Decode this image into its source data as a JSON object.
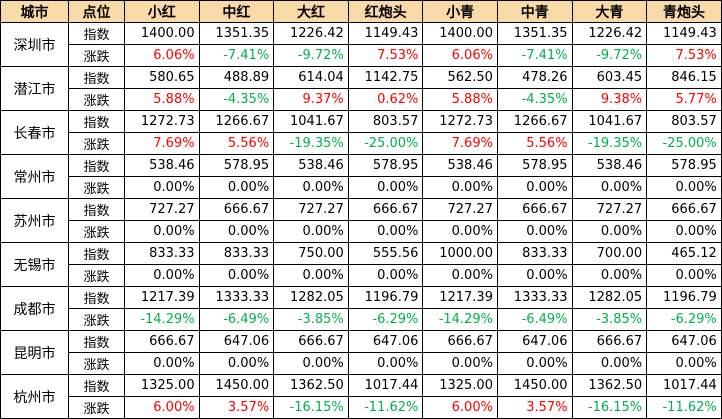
{
  "headers": [
    "城市",
    "点位",
    "小红",
    "中红",
    "大红",
    "红炮头",
    "小青",
    "中青",
    "大青",
    "青炮头"
  ],
  "row_labels": {
    "index": "指数",
    "change": "涨跌"
  },
  "colors": {
    "header_bg": "#f8d9a8",
    "up": "#ff0000",
    "down": "#00b050",
    "flat": "#000000"
  },
  "cities": [
    {
      "name": "深圳市",
      "index": [
        "1400.00",
        "1351.35",
        "1226.42",
        "1149.43",
        "1400.00",
        "1351.35",
        "1226.42",
        "1149.43"
      ],
      "change": [
        "6.06%",
        "-7.41%",
        "-9.72%",
        "7.53%",
        "6.06%",
        "-7.41%",
        "-9.72%",
        "7.53%"
      ]
    },
    {
      "name": "潜江市",
      "index": [
        "580.65",
        "488.89",
        "614.04",
        "1142.75",
        "562.50",
        "478.26",
        "603.45",
        "846.15"
      ],
      "change": [
        "5.88%",
        "-4.35%",
        "9.37%",
        "0.62%",
        "5.88%",
        "-4.35%",
        "9.38%",
        "5.77%"
      ]
    },
    {
      "name": "长春市",
      "index": [
        "1272.73",
        "1266.67",
        "1041.67",
        "803.57",
        "1272.73",
        "1266.67",
        "1041.67",
        "803.57"
      ],
      "change": [
        "7.69%",
        "5.56%",
        "-19.35%",
        "-25.00%",
        "7.69%",
        "5.56%",
        "-19.35%",
        "-25.00%"
      ]
    },
    {
      "name": "常州市",
      "index": [
        "538.46",
        "578.95",
        "538.46",
        "578.95",
        "538.46",
        "578.95",
        "538.46",
        "578.95"
      ],
      "change": [
        "0.00%",
        "0.00%",
        "0.00%",
        "0.00%",
        "0.00%",
        "0.00%",
        "0.00%",
        "0.00%"
      ]
    },
    {
      "name": "苏州市",
      "index": [
        "727.27",
        "666.67",
        "727.27",
        "666.67",
        "727.27",
        "666.67",
        "727.27",
        "666.67"
      ],
      "change": [
        "0.00%",
        "0.00%",
        "0.00%",
        "0.00%",
        "0.00%",
        "0.00%",
        "0.00%",
        "0.00%"
      ]
    },
    {
      "name": "无锡市",
      "index": [
        "833.33",
        "833.33",
        "750.00",
        "555.56",
        "1000.00",
        "833.33",
        "700.00",
        "465.12"
      ],
      "change": [
        "0.00%",
        "0.00%",
        "0.00%",
        "0.00%",
        "0.00%",
        "0.00%",
        "0.00%",
        "0.00%"
      ]
    },
    {
      "name": "成都市",
      "index": [
        "1217.39",
        "1333.33",
        "1282.05",
        "1196.79",
        "1217.39",
        "1333.33",
        "1282.05",
        "1196.79"
      ],
      "change": [
        "-14.29%",
        "-6.49%",
        "-3.85%",
        "-6.29%",
        "-14.29%",
        "-6.49%",
        "-3.85%",
        "-6.29%"
      ]
    },
    {
      "name": "昆明市",
      "index": [
        "666.67",
        "647.06",
        "666.67",
        "647.06",
        "666.67",
        "647.06",
        "666.67",
        "647.06"
      ],
      "change": [
        "0.00%",
        "0.00%",
        "0.00%",
        "0.00%",
        "0.00%",
        "0.00%",
        "0.00%",
        "0.00%"
      ]
    },
    {
      "name": "杭州市",
      "index": [
        "1325.00",
        "1450.00",
        "1362.50",
        "1017.44",
        "1325.00",
        "1450.00",
        "1362.50",
        "1017.44"
      ],
      "change": [
        "6.00%",
        "3.57%",
        "-16.15%",
        "-11.62%",
        "6.00%",
        "3.57%",
        "-16.15%",
        "-11.62%"
      ]
    }
  ]
}
